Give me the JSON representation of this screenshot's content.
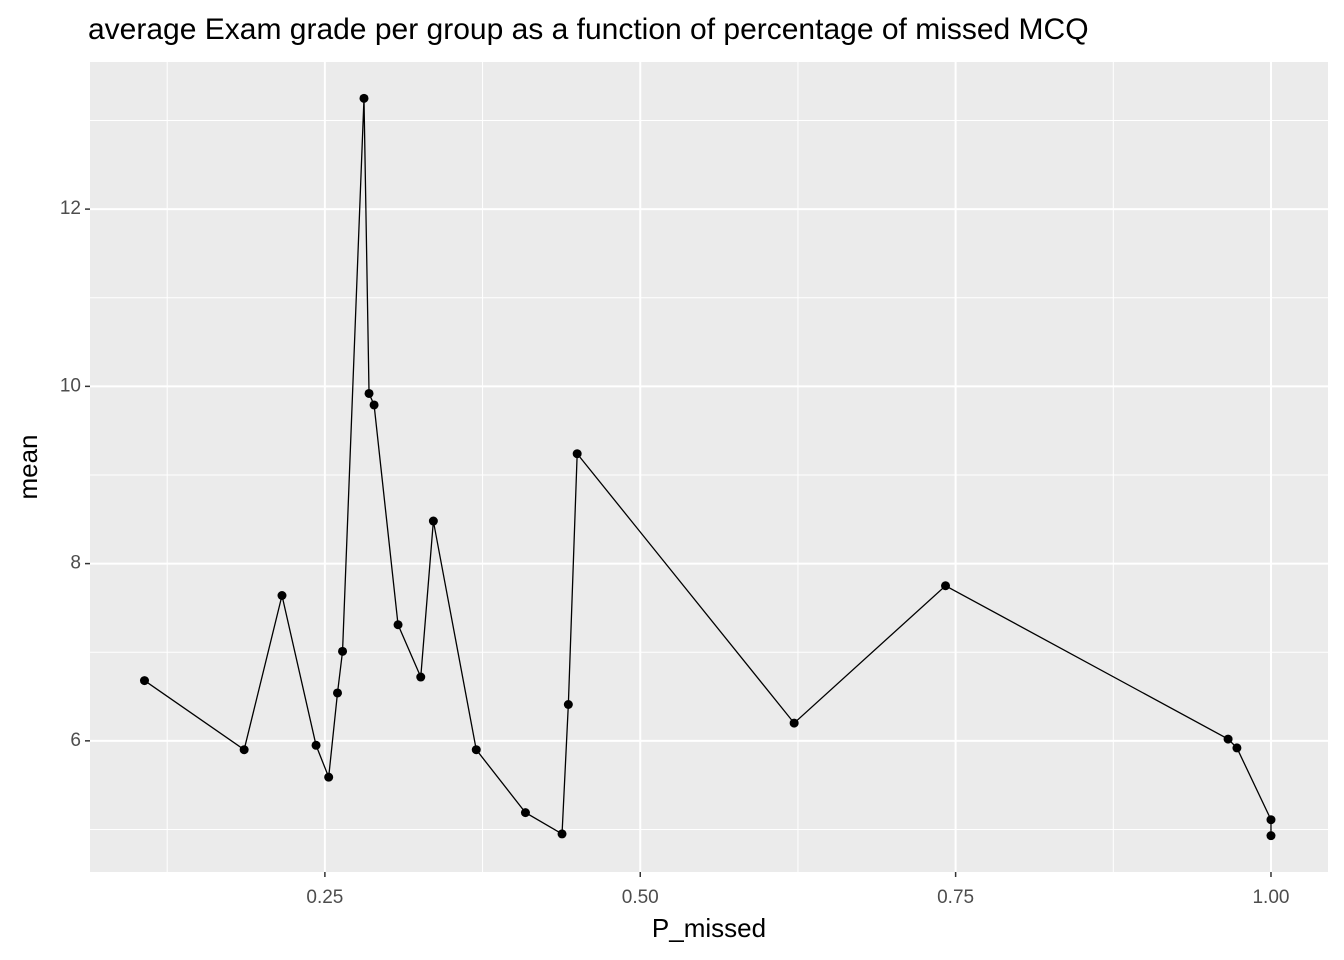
{
  "chart_data": {
    "type": "line",
    "title": "average  Exam grade per group as a function of percentage of missed MCQ",
    "x_label": "P_missed",
    "y_label": "mean",
    "x": [
      0.107,
      0.186,
      0.216,
      0.243,
      0.253,
      0.26,
      0.264,
      0.281,
      0.285,
      0.289,
      0.308,
      0.326,
      0.336,
      0.37,
      0.409,
      0.438,
      0.443,
      0.45,
      0.622,
      0.742,
      0.966,
      0.973,
      1.0,
      1.0
    ],
    "series": [
      {
        "name": "mean",
        "color": "#000000",
        "values": [
          6.68,
          5.9,
          7.64,
          5.95,
          5.59,
          6.54,
          7.01,
          13.25,
          9.92,
          9.79,
          7.31,
          6.72,
          8.48,
          5.9,
          5.19,
          4.95,
          6.41,
          9.24,
          6.2,
          7.75,
          6.02,
          5.92,
          5.11,
          4.93
        ]
      }
    ],
    "xlim": [
      0.0638,
      1.0452
    ],
    "ylim": [
      4.52,
      13.66
    ],
    "xticks": [
      0.25,
      {
        "value": 0.5,
        "label": "0.50"
      },
      {
        "value": 0.75,
        "label": "0.75"
      },
      {
        "value": 1.0,
        "label": "1.00"
      }
    ],
    "yticks": [
      6,
      8,
      10,
      12
    ],
    "grid": true
  }
}
